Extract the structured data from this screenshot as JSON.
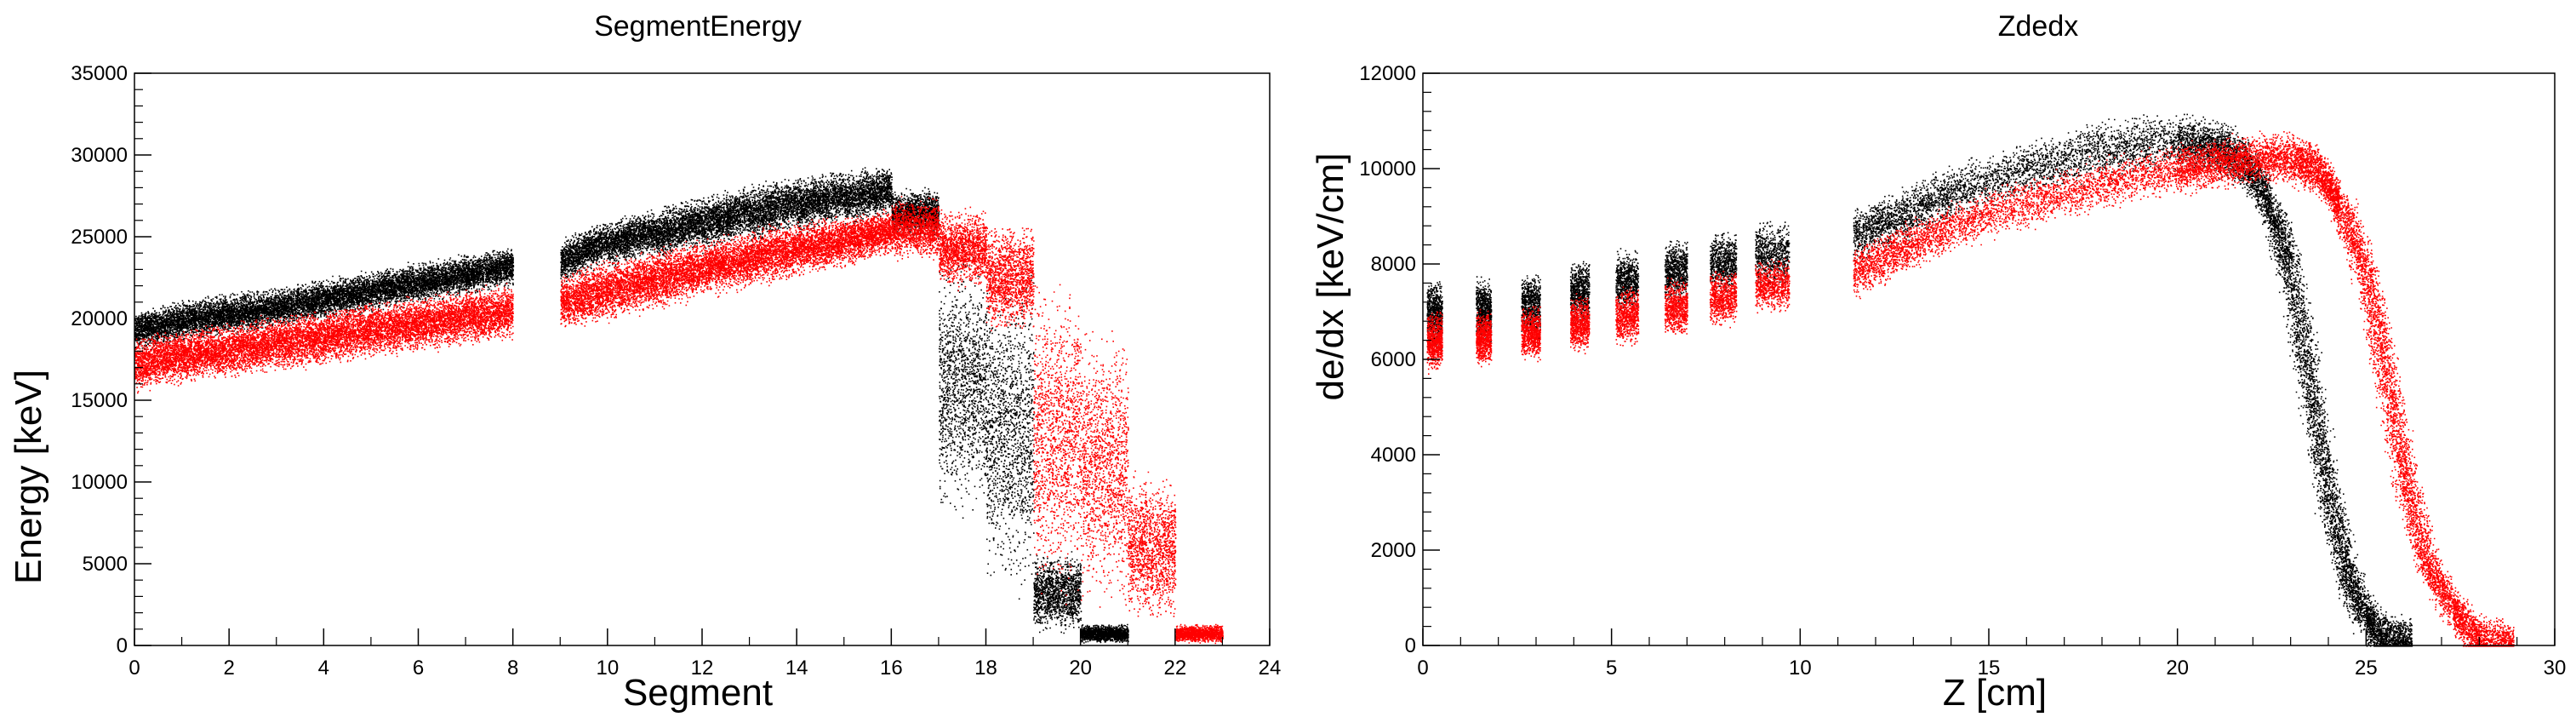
{
  "chart_data": [
    {
      "type": "scatter",
      "title": "SegmentEnergy",
      "xlabel": "Segment",
      "ylabel": "Energy [keV]",
      "xlim": [
        0,
        24
      ],
      "ylim": [
        0,
        35000
      ],
      "x_ticks": [
        "0",
        "2",
        "4",
        "6",
        "8",
        "10",
        "12",
        "14",
        "16",
        "18",
        "20",
        "22",
        "24"
      ],
      "y_ticks": [
        "0",
        "5000",
        "10000",
        "15000",
        "20000",
        "25000",
        "30000",
        "35000"
      ],
      "grid": false,
      "colors": [
        "#000000",
        "#ff0000"
      ],
      "series": [
        {
          "color": "#000000",
          "bands": [
            {
              "x": [
                0,
                1
              ],
              "y": [
                17500,
                21000
              ],
              "y_end": [
                18200,
                21600
              ]
            },
            {
              "x": [
                1,
                2
              ],
              "y": [
                18200,
                21600
              ],
              "y_end": [
                18600,
                22000
              ]
            },
            {
              "x": [
                2,
                3
              ],
              "y": [
                18600,
                22000
              ],
              "y_end": [
                19000,
                22400
              ]
            },
            {
              "x": [
                3,
                4
              ],
              "y": [
                19000,
                22400
              ],
              "y_end": [
                19500,
                22900
              ]
            },
            {
              "x": [
                4,
                5
              ],
              "y": [
                19500,
                22900
              ],
              "y_end": [
                20000,
                23400
              ]
            },
            {
              "x": [
                5,
                6
              ],
              "y": [
                20000,
                23400
              ],
              "y_end": [
                20500,
                23900
              ]
            },
            {
              "x": [
                6,
                7
              ],
              "y": [
                20500,
                23900
              ],
              "y_end": [
                21000,
                24400
              ]
            },
            {
              "x": [
                7,
                8
              ],
              "y": [
                21000,
                24400
              ],
              "y_end": [
                21500,
                24900
              ]
            },
            {
              "x": [
                9,
                10
              ],
              "y": [
                21500,
                25500
              ],
              "y_end": [
                23000,
                26500
              ]
            },
            {
              "x": [
                10,
                11
              ],
              "y": [
                22500,
                26500
              ],
              "y_end": [
                23500,
                27300
              ]
            },
            {
              "x": [
                11,
                12
              ],
              "y": [
                23000,
                27300
              ],
              "y_end": [
                24000,
                28000
              ]
            },
            {
              "x": [
                12,
                13
              ],
              "y": [
                23500,
                28000
              ],
              "y_end": [
                24500,
                28800
              ]
            },
            {
              "x": [
                13,
                14
              ],
              "y": [
                24000,
                28800
              ],
              "y_end": [
                25000,
                29300
              ]
            },
            {
              "x": [
                14,
                15
              ],
              "y": [
                24500,
                29300
              ],
              "y_end": [
                25500,
                29700
              ]
            },
            {
              "x": [
                15,
                16
              ],
              "y": [
                25000,
                29700
              ],
              "y_end": [
                25800,
                30000
              ]
            },
            {
              "x": [
                16,
                17
              ],
              "y": [
                24500,
                28500
              ],
              "y_end": [
                24500,
                28500
              ]
            },
            {
              "x": [
                17,
                18
              ],
              "y": [
                5000,
                26500
              ],
              "y_end": [
                5000,
                26500
              ]
            },
            {
              "x": [
                18,
                19
              ],
              "y": [
                0,
                26000
              ],
              "y_end": [
                0,
                26000
              ]
            },
            {
              "x": [
                19,
                20
              ],
              "y": [
                0,
                6500
              ],
              "y_end": [
                0,
                6500
              ]
            },
            {
              "x": [
                20,
                21
              ],
              "y": [
                0,
                1500
              ],
              "y_end": [
                0,
                1500
              ]
            }
          ]
        },
        {
          "color": "#ff0000",
          "bands": [
            {
              "x": [
                0,
                1
              ],
              "y": [
                15000,
                19500
              ],
              "y_end": [
                15500,
                20000
              ]
            },
            {
              "x": [
                1,
                2
              ],
              "y": [
                15500,
                20000
              ],
              "y_end": [
                15800,
                20400
              ]
            },
            {
              "x": [
                2,
                3
              ],
              "y": [
                15800,
                20400
              ],
              "y_end": [
                16200,
                20800
              ]
            },
            {
              "x": [
                3,
                4
              ],
              "y": [
                16200,
                20800
              ],
              "y_end": [
                16600,
                21200
              ]
            },
            {
              "x": [
                4,
                5
              ],
              "y": [
                16600,
                21200
              ],
              "y_end": [
                17000,
                21600
              ]
            },
            {
              "x": [
                5,
                6
              ],
              "y": [
                17000,
                21600
              ],
              "y_end": [
                17400,
                22000
              ]
            },
            {
              "x": [
                6,
                7
              ],
              "y": [
                17400,
                22000
              ],
              "y_end": [
                17800,
                22400
              ]
            },
            {
              "x": [
                7,
                8
              ],
              "y": [
                17800,
                22400
              ],
              "y_end": [
                18200,
                22800
              ]
            },
            {
              "x": [
                9,
                10
              ],
              "y": [
                18500,
                23500
              ],
              "y_end": [
                19200,
                24300
              ]
            },
            {
              "x": [
                10,
                11
              ],
              "y": [
                19200,
                24300
              ],
              "y_end": [
                19900,
                25000
              ]
            },
            {
              "x": [
                11,
                12
              ],
              "y": [
                19900,
                25000
              ],
              "y_end": [
                20600,
                25600
              ]
            },
            {
              "x": [
                12,
                13
              ],
              "y": [
                20600,
                25600
              ],
              "y_end": [
                21300,
                26100
              ]
            },
            {
              "x": [
                13,
                14
              ],
              "y": [
                21300,
                26100
              ],
              "y_end": [
                22000,
                26500
              ]
            },
            {
              "x": [
                14,
                15
              ],
              "y": [
                22000,
                26500
              ],
              "y_end": [
                22700,
                26900
              ]
            },
            {
              "x": [
                15,
                16
              ],
              "y": [
                22700,
                26900
              ],
              "y_end": [
                23400,
                27300
              ]
            },
            {
              "x": [
                16,
                17
              ],
              "y": [
                23000,
                28000
              ],
              "y_end": [
                23000,
                28000
              ]
            },
            {
              "x": [
                17,
                18
              ],
              "y": [
                21000,
                27500
              ],
              "y_end": [
                21000,
                27500
              ]
            },
            {
              "x": [
                18,
                19
              ],
              "y": [
                18000,
                27000
              ],
              "y_end": [
                18000,
                27000
              ]
            },
            {
              "x": [
                19,
                20
              ],
              "y": [
                0,
                25500
              ],
              "y_end": [
                0,
                25500
              ]
            },
            {
              "x": [
                20,
                21
              ],
              "y": [
                0,
                22000
              ],
              "y_end": [
                0,
                22000
              ]
            },
            {
              "x": [
                21,
                22
              ],
              "y": [
                0,
                12000
              ],
              "y_end": [
                0,
                12000
              ]
            },
            {
              "x": [
                22,
                23
              ],
              "y": [
                0,
                1500
              ],
              "y_end": [
                0,
                1500
              ]
            }
          ]
        }
      ]
    },
    {
      "type": "scatter",
      "title": "Zdedx",
      "xlabel": "Z [cm]",
      "ylabel": "de/dx [keV/cm]",
      "xlim": [
        0,
        30
      ],
      "ylim": [
        0,
        12000
      ],
      "x_ticks": [
        "0",
        "5",
        "10",
        "15",
        "20",
        "25",
        "30"
      ],
      "y_ticks": [
        "0",
        "2000",
        "4000",
        "6000",
        "8000",
        "10000",
        "12000"
      ],
      "grid": false,
      "colors": [
        "#000000",
        "#ff0000"
      ],
      "series": [
        {
          "color": "#000000",
          "clusters": [
            {
              "x": [
                0.1,
                0.5
              ],
              "y": [
                6000,
                7900
              ]
            },
            {
              "x": [
                1.4,
                1.8
              ],
              "y": [
                6200,
                7900
              ]
            },
            {
              "x": [
                2.6,
                3.1
              ],
              "y": [
                6300,
                8000
              ]
            },
            {
              "x": [
                3.9,
                4.4
              ],
              "y": [
                6600,
                8300
              ]
            },
            {
              "x": [
                5.1,
                5.7
              ],
              "y": [
                6800,
                8500
              ]
            },
            {
              "x": [
                6.4,
                7.0
              ],
              "y": [
                7000,
                8700
              ]
            },
            {
              "x": [
                7.6,
                8.3
              ],
              "y": [
                7200,
                8900
              ]
            },
            {
              "x": [
                8.8,
                9.7
              ],
              "y": [
                7300,
                9100
              ]
            }
          ],
          "curve": {
            "x": [
              11.4,
              12.6,
              14,
              16,
              18,
              20,
              21,
              21.8,
              22.5,
              23,
              23.5,
              24,
              24.5,
              25,
              25.6,
              26.2
            ],
            "y": [
              8600,
              9000,
              9500,
              10000,
              10400,
              10600,
              10500,
              10100,
              9200,
              7800,
              5500,
              3200,
              1500,
              500,
              100,
              0
            ],
            "spread": 700
          }
        },
        {
          "color": "#ff0000",
          "clusters": [
            {
              "x": [
                0.1,
                0.5
              ],
              "y": [
                5600,
                7200
              ]
            },
            {
              "x": [
                1.4,
                1.8
              ],
              "y": [
                5700,
                7200
              ]
            },
            {
              "x": [
                2.6,
                3.1
              ],
              "y": [
                5800,
                7300
              ]
            },
            {
              "x": [
                3.9,
                4.4
              ],
              "y": [
                6000,
                7500
              ]
            },
            {
              "x": [
                5.1,
                5.7
              ],
              "y": [
                6100,
                7700
              ]
            },
            {
              "x": [
                6.4,
                7.0
              ],
              "y": [
                6300,
                7900
              ]
            },
            {
              "x": [
                7.6,
                8.3
              ],
              "y": [
                6500,
                8100
              ]
            },
            {
              "x": [
                8.8,
                9.7
              ],
              "y": [
                6800,
                8300
              ]
            }
          ],
          "curve": {
            "x": [
              11.4,
              12.6,
              14,
              16,
              18,
              20,
              21,
              22,
              23,
              23.7,
              24.3,
              25,
              25.5,
              26,
              26.6,
              27.3,
              28,
              28.9
            ],
            "y": [
              7800,
              8300,
              8800,
              9300,
              9700,
              10000,
              10100,
              10200,
              10200,
              10000,
              9300,
              7800,
              5800,
              3600,
              1800,
              700,
              150,
              0
            ],
            "spread": 650
          }
        }
      ]
    }
  ]
}
